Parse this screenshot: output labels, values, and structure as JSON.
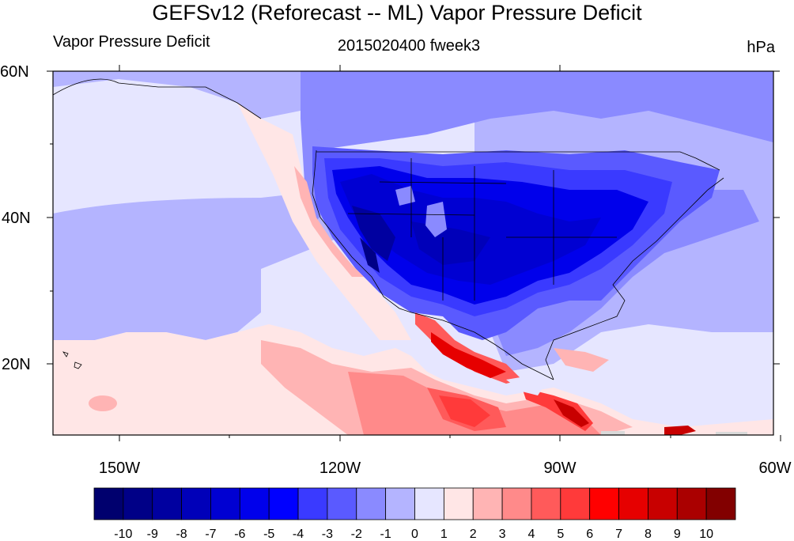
{
  "title": "GEFSv12 (Reforecast -- ML) Vapor Pressure Deficit",
  "left_label": "Vapor Pressure Deficit",
  "center_label": "2015020400 fweek3",
  "right_label": "hPa",
  "map": {
    "lat_labels": [
      "60N",
      "40N",
      "20N"
    ],
    "lon_labels": [
      "150W",
      "120W",
      "90W",
      "60W"
    ],
    "extent": {
      "lon_min": -159,
      "lon_max": -61,
      "lat_min": 10,
      "lat_max": 60
    }
  },
  "colorbar": {
    "labels": [
      "-10",
      "-9",
      "-8",
      "-7",
      "-6",
      "-5",
      "-4",
      "-3",
      "-2",
      "-1",
      "0",
      "1",
      "2",
      "3",
      "4",
      "5",
      "6",
      "7",
      "8",
      "9",
      "10"
    ],
    "colors": [
      "#00006e",
      "#000087",
      "#0000a0",
      "#0000b9",
      "#0000d2",
      "#0000eb",
      "#0000ff",
      "#3a3aff",
      "#5a5aff",
      "#8a8aff",
      "#b4b4ff",
      "#e6e6ff",
      "#ffe6e6",
      "#ffb4b4",
      "#ff8a8a",
      "#ff5a5a",
      "#ff3a3a",
      "#ff0000",
      "#e60000",
      "#c80000",
      "#aa0000",
      "#820000"
    ]
  }
}
